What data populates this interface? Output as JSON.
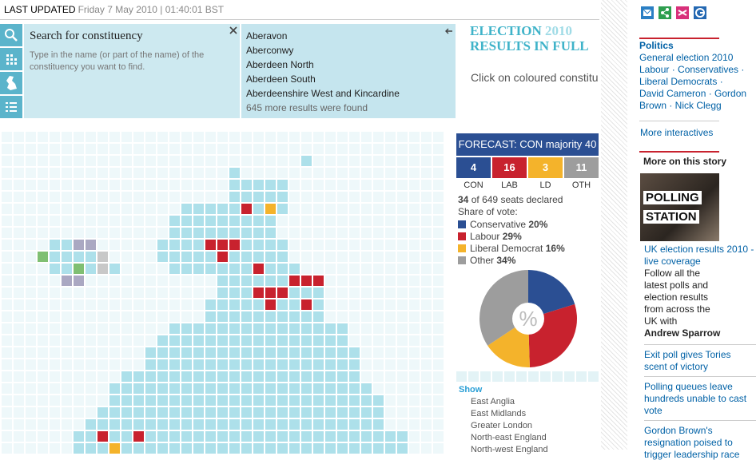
{
  "header": {
    "label": "LAST UPDATED",
    "timestamp": "Friday 7 May 2010 | 01:40:01 BST"
  },
  "search": {
    "title": "Search for constituency",
    "hint": "Type in the name (or part of the name) of the constituency you want to find.",
    "results": [
      "Aberavon",
      "Aberconwy",
      "Aberdeen North",
      "Aberdeen South",
      "Aberdeenshire West and Kincardine"
    ],
    "more": "645 more results were found"
  },
  "banner": {
    "line1": "ELECTION",
    "year": "2010",
    "line2": "RESULTS IN FULL"
  },
  "instruction": "Click on coloured constitu",
  "forecast": {
    "title": "FORECAST: CON majority 40",
    "seats": [
      {
        "party": "CON",
        "value": 4,
        "color": "#2b4f93"
      },
      {
        "party": "LAB",
        "value": 16,
        "color": "#c8222e"
      },
      {
        "party": "LD",
        "value": 3,
        "color": "#f4b32b"
      },
      {
        "party": "OTH",
        "value": 11,
        "color": "#9d9d9d"
      }
    ]
  },
  "declared": {
    "count": 34,
    "of": "of",
    "total": 649,
    "label": "seats declared"
  },
  "chart_data": {
    "type": "pie",
    "title": "Share of vote:",
    "center_label": "%",
    "categories": [
      "Conservative",
      "Labour",
      "Liberal Democrat",
      "Other"
    ],
    "values": [
      20,
      29,
      16,
      34
    ],
    "value_labels": [
      "20%",
      "29%",
      "16%",
      "34%"
    ],
    "colors": [
      "#2b4f93",
      "#c8222e",
      "#f4b32b",
      "#9d9d9d"
    ]
  },
  "show": {
    "title": "Show",
    "regions": [
      "East Anglia",
      "East Midlands",
      "Greater London",
      "North-east England",
      "North-west England"
    ]
  },
  "sidebar": {
    "politics": {
      "title": "Politics",
      "lines": [
        "General election 2010",
        "Labour · Conservatives ·",
        "Liberal Democrats ·",
        "David Cameron · Gordon",
        "Brown · Nick Clegg"
      ]
    },
    "more_interactives": "More interactives",
    "story": {
      "title": "More on this story",
      "image_text": [
        "POLLING",
        "STATION"
      ],
      "lead": {
        "headline": "UK election results 2010 - live coverage",
        "body": "Follow all the latest polls and election results from across the UK with",
        "author": "Andrew Sparrow"
      },
      "items": [
        "Exit poll gives Tories scent of victory",
        "Polling queues leave hundreds unable to cast vote",
        "Gordon Brown's resignation poised to trigger leadership race"
      ]
    }
  }
}
